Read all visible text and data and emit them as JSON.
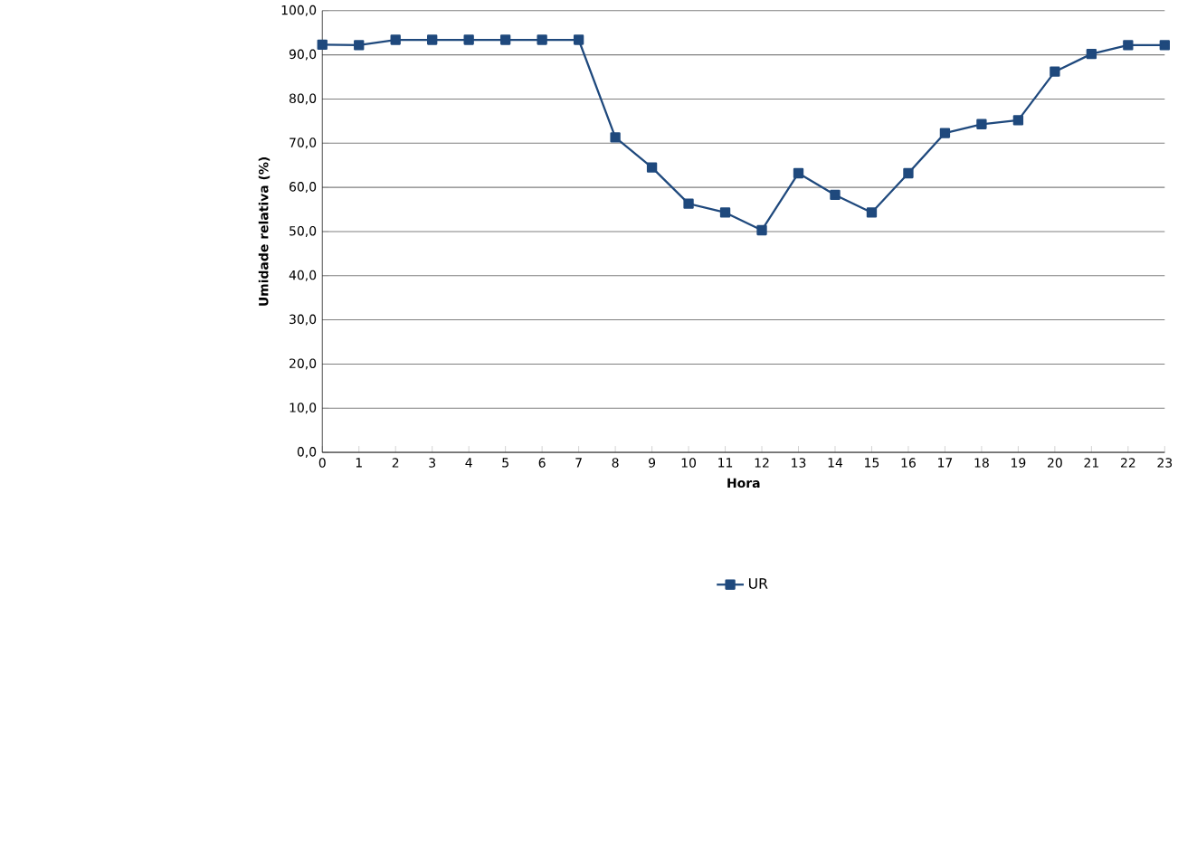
{
  "chart_data": {
    "type": "line",
    "xlabel": "Hora",
    "ylabel": "Umidade relativa (%)",
    "categories": [
      "0",
      "1",
      "2",
      "3",
      "4",
      "5",
      "6",
      "7",
      "8",
      "9",
      "10",
      "11",
      "12",
      "13",
      "14",
      "15",
      "16",
      "17",
      "18",
      "19",
      "20",
      "21",
      "22",
      "23"
    ],
    "series": [
      {
        "name": "UR",
        "color": "#1f497d",
        "values": [
          92.3,
          92.2,
          93.4,
          93.4,
          93.4,
          93.4,
          93.4,
          93.4,
          71.3,
          64.5,
          56.3,
          54.3,
          50.3,
          63.2,
          58.3,
          54.3,
          63.2,
          72.3,
          74.3,
          75.2,
          86.2,
          90.2,
          92.2,
          92.2
        ]
      }
    ],
    "ylim": [
      0,
      100
    ],
    "yticks": [
      {
        "value": 0,
        "label": "0,0"
      },
      {
        "value": 10,
        "label": "10,0"
      },
      {
        "value": 20,
        "label": "20,0"
      },
      {
        "value": 30,
        "label": "30,0"
      },
      {
        "value": 40,
        "label": "40,0"
      },
      {
        "value": 50,
        "label": "50,0"
      },
      {
        "value": 60,
        "label": "60,0"
      },
      {
        "value": 70,
        "label": "70,0"
      },
      {
        "value": 80,
        "label": "80,0"
      },
      {
        "value": 90,
        "label": "90,0"
      },
      {
        "value": 100,
        "label": "100,0"
      }
    ],
    "grid": "y",
    "legend": "bottom",
    "marker": "square",
    "line_style": "solid"
  }
}
